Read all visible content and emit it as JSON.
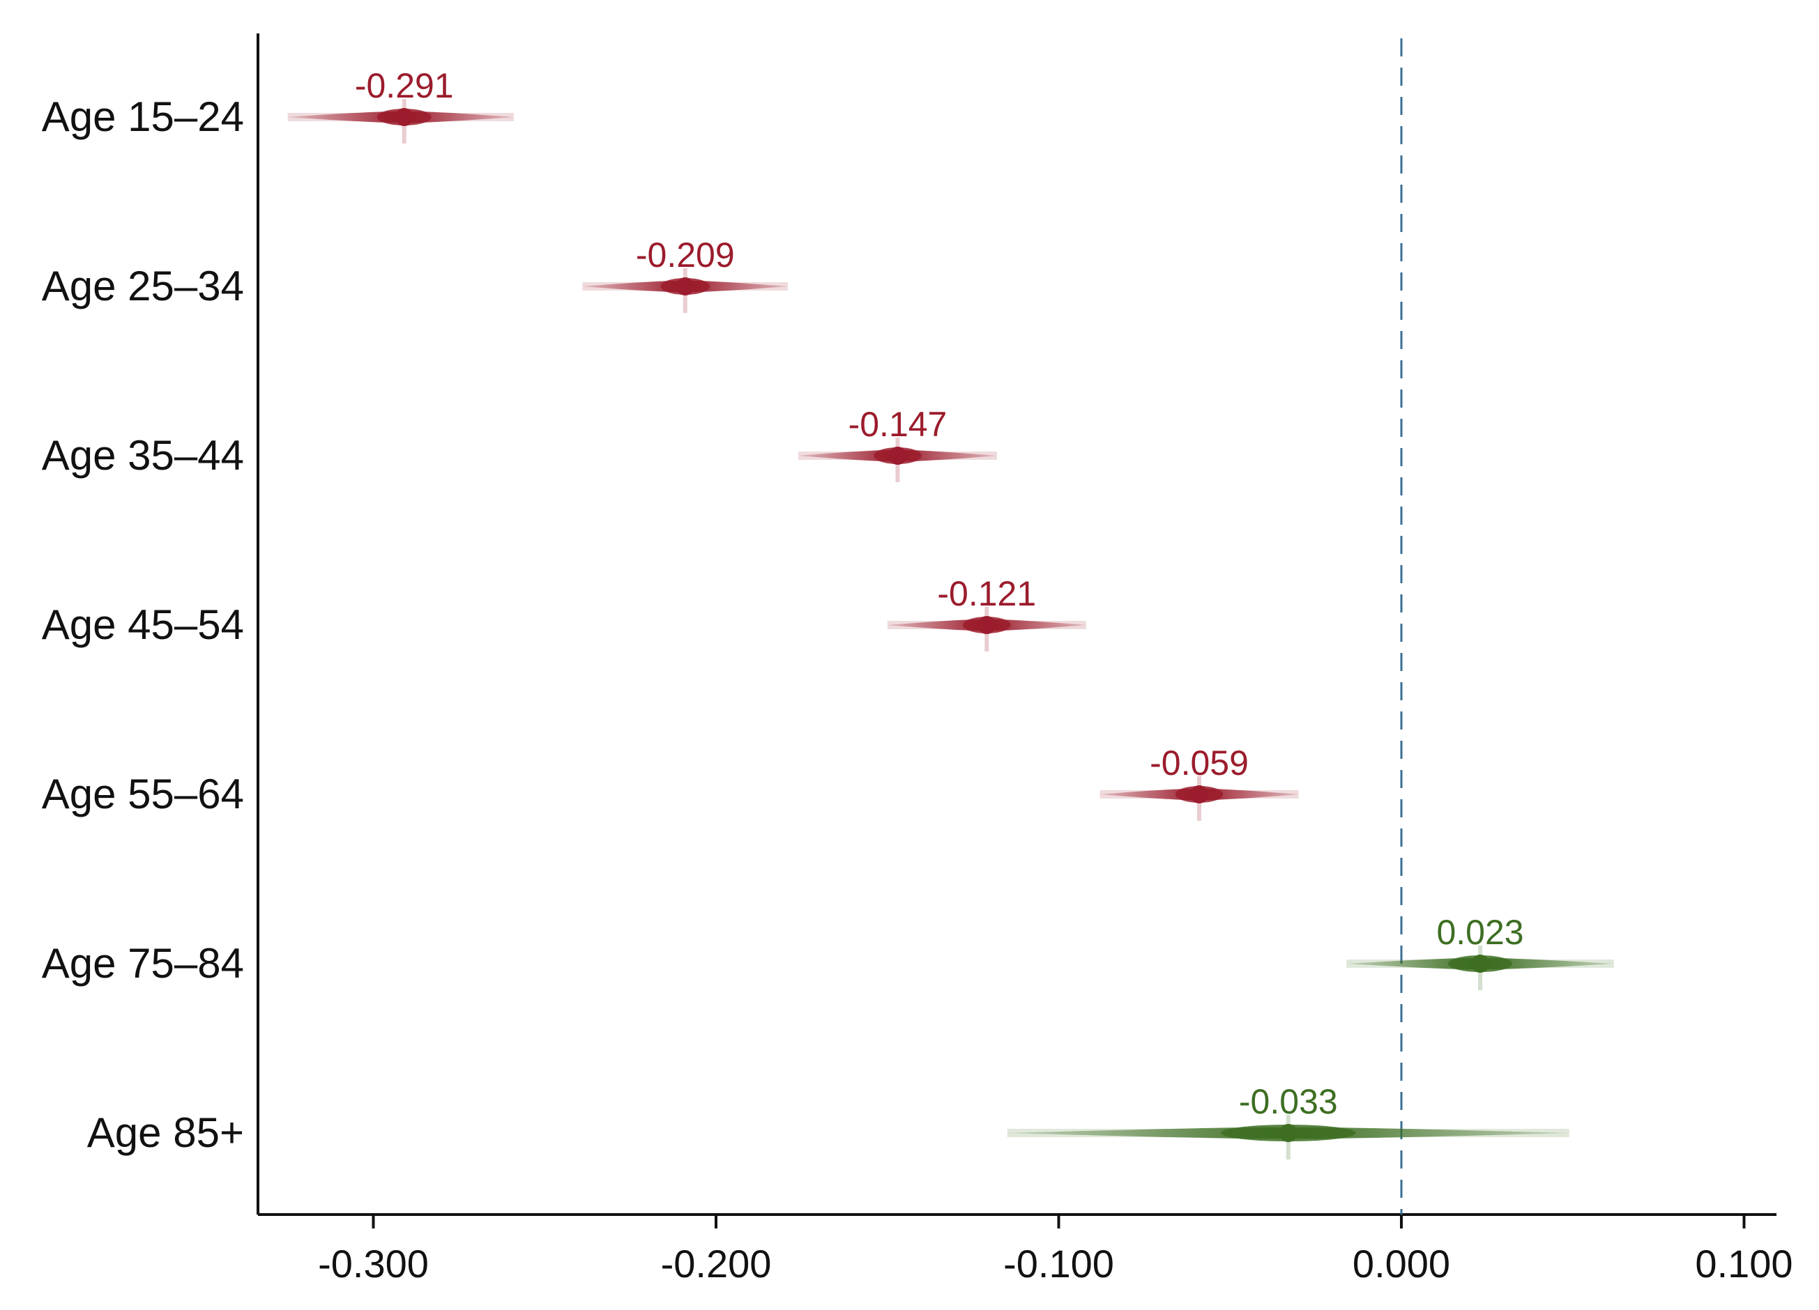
{
  "chart_data": {
    "type": "scatter",
    "subtype": "forest-plot-with-interval-densities",
    "title": "",
    "xlabel": "",
    "ylabel": "",
    "xlim": [
      -0.335,
      0.108
    ],
    "x_ticks": [
      -0.3,
      -0.2,
      -0.1,
      0.0,
      0.1
    ],
    "x_tick_labels": [
      "-0.300",
      "-0.200",
      "-0.100",
      "0.000",
      "0.100"
    ],
    "reference_line": {
      "x": 0.0,
      "style": "dashed",
      "color": "#3a6f95"
    },
    "grid": false,
    "legend": "none",
    "colors": {
      "negative": "#9b1c2c",
      "positive": "#3d6e22"
    },
    "categories": [
      "Age 15–24",
      "Age 25–34",
      "Age 35–44",
      "Age 45–54",
      "Age 55–64",
      "Age 75–84",
      "Age 85+"
    ],
    "points": [
      {
        "category": "Age 15–24",
        "estimate": -0.291,
        "label": "-0.291",
        "low": -0.325,
        "high": -0.259,
        "group": "negative"
      },
      {
        "category": "Age 25–34",
        "estimate": -0.209,
        "label": "-0.209",
        "low": -0.239,
        "high": -0.179,
        "group": "negative"
      },
      {
        "category": "Age 35–44",
        "estimate": -0.147,
        "label": "-0.147",
        "low": -0.176,
        "high": -0.118,
        "group": "negative"
      },
      {
        "category": "Age 45–54",
        "estimate": -0.121,
        "label": "-0.121",
        "low": -0.15,
        "high": -0.092,
        "group": "negative"
      },
      {
        "category": "Age 55–64",
        "estimate": -0.059,
        "label": "-0.059",
        "low": -0.088,
        "high": -0.03,
        "group": "negative"
      },
      {
        "category": "Age 75–84",
        "estimate": 0.023,
        "label": "0.023",
        "low": -0.016,
        "high": 0.062,
        "group": "positive"
      },
      {
        "category": "Age 85+",
        "estimate": -0.033,
        "label": "-0.033",
        "low": -0.115,
        "high": 0.049,
        "group": "positive"
      }
    ]
  }
}
